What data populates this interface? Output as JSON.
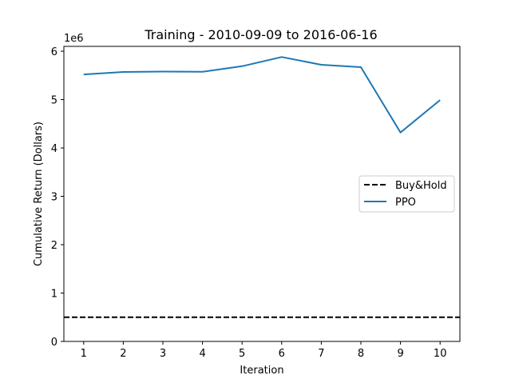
{
  "chart_data": {
    "type": "line",
    "title": "Training - 2010-09-09 to 2016-06-16",
    "xlabel": "Iteration",
    "ylabel": "Cumulative Return (Dollars)",
    "y_offset_label": "1e6",
    "y_scale_factor": 1000000,
    "xlim": [
      0.5,
      10.5
    ],
    "ylim": [
      0,
      6100000
    ],
    "x_ticks": [
      1,
      2,
      3,
      4,
      5,
      6,
      7,
      8,
      9,
      10
    ],
    "y_ticks": [
      0,
      1000000,
      2000000,
      3000000,
      4000000,
      5000000,
      6000000
    ],
    "y_tick_labels": [
      "0",
      "1",
      "2",
      "3",
      "4",
      "5",
      "6"
    ],
    "grid": false,
    "legend_position": "center-right",
    "x": [
      1,
      2,
      3,
      4,
      5,
      6,
      7,
      8,
      9,
      10
    ],
    "series": [
      {
        "name": "Buy&Hold",
        "style": "dashed",
        "color": "#000000",
        "values": [
          500000,
          500000,
          500000,
          500000,
          500000,
          500000,
          500000,
          500000,
          500000,
          500000
        ]
      },
      {
        "name": "PPO",
        "style": "solid",
        "color": "#1f77b4",
        "values": [
          5520000,
          5570000,
          5580000,
          5575000,
          5690000,
          5880000,
          5720000,
          5670000,
          4320000,
          4990000
        ]
      }
    ]
  }
}
